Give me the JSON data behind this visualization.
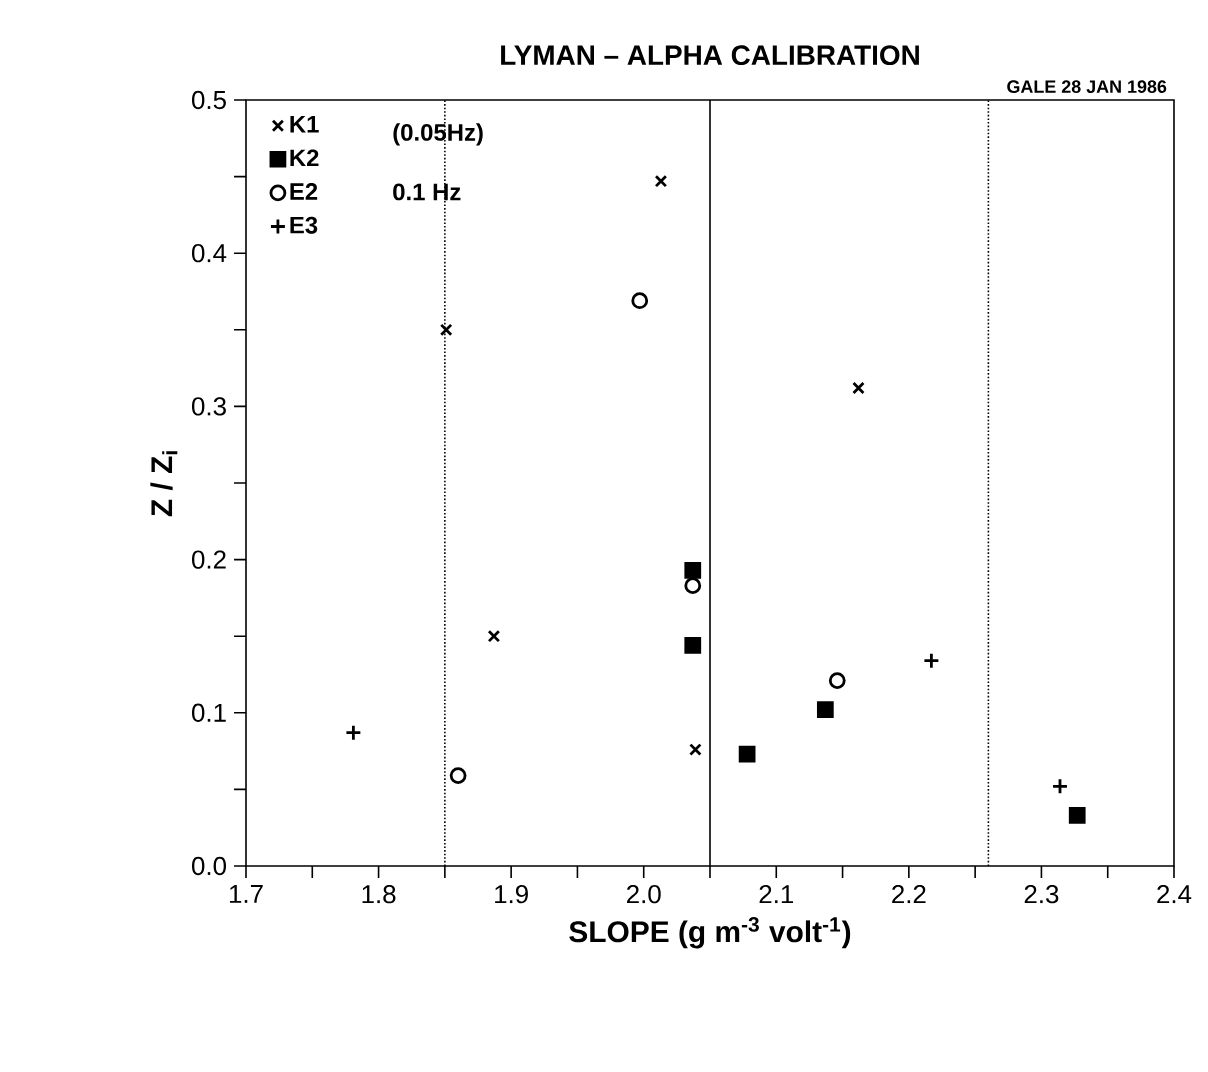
{
  "chart_data": {
    "type": "scatter",
    "title": "LYMAN – ALPHA CALIBRATION",
    "xlabel": "SLOPE (g m$^{-3}$ volt$^{-1}$)",
    "ylabel": "Z / Z$_{i}$",
    "annotations": [
      "GALE 28 JAN 1986",
      "(0.05Hz)",
      "0.1 Hz"
    ],
    "series": [
      {
        "name": "K1",
        "color": "#000000",
        "marker": "cross",
        "x": [
          1.851,
          2.013,
          1.887,
          2.039,
          2.162
        ],
        "values": [
          0.35,
          0.447,
          0.15,
          0.076,
          0.312
        ]
      },
      {
        "name": "K2",
        "color": "#000000",
        "marker": "square",
        "x": [
          2.037,
          2.037,
          2.078,
          2.137,
          2.327
        ],
        "values": [
          0.193,
          0.144,
          0.073,
          0.102,
          0.033
        ]
      },
      {
        "name": "E2",
        "color": "#000000",
        "marker": "circle",
        "x": [
          1.997,
          1.86,
          2.037,
          2.146
        ],
        "values": [
          0.369,
          0.059,
          0.183,
          0.121
        ]
      },
      {
        "name": "E3",
        "color": "#000000",
        "marker": "plus",
        "x": [
          1.781,
          2.217,
          2.314
        ],
        "values": [
          0.087,
          0.134,
          0.052
        ]
      }
    ],
    "xlim": [
      1.7,
      2.4
    ],
    "xticks": [
      {
        "value": 1.7,
        "label": "1.7"
      },
      {
        "value": 1.75,
        "label": null
      },
      {
        "value": 1.8,
        "label": "1.8"
      },
      {
        "value": 1.85,
        "label": null
      },
      {
        "value": 1.9,
        "label": "1.9"
      },
      {
        "value": 1.95,
        "label": null
      },
      {
        "value": 2.0,
        "label": "2.0"
      },
      {
        "value": 2.05,
        "label": null
      },
      {
        "value": 2.1,
        "label": "2.1"
      },
      {
        "value": 2.15,
        "label": null
      },
      {
        "value": 2.2,
        "label": "2.2"
      },
      {
        "value": 2.25,
        "label": null
      },
      {
        "value": 2.3,
        "label": "2.3"
      },
      {
        "value": 2.35,
        "label": null
      },
      {
        "value": 2.4,
        "label": "2.4"
      }
    ],
    "ylim": [
      0,
      0.5
    ],
    "yticks": [
      {
        "value": 0,
        "label": "0.0"
      },
      {
        "value": 0.05,
        "label": null
      },
      {
        "value": 0.1,
        "label": "0.1"
      },
      {
        "value": 0.15,
        "label": null
      },
      {
        "value": 0.2,
        "label": "0.2"
      },
      {
        "value": 0.25,
        "label": null
      },
      {
        "value": 0.3,
        "label": "0.3"
      },
      {
        "value": 0.35,
        "label": null
      },
      {
        "value": 0.4,
        "label": "0.4"
      },
      {
        "value": 0.45,
        "label": null
      },
      {
        "value": 0.5,
        "label": "0.5"
      }
    ],
    "ref_lines": [
      {
        "axis": "x",
        "value": 1.85,
        "line_style": "dotted"
      },
      {
        "axis": "x",
        "value": 2.05,
        "line_style": "solid"
      },
      {
        "axis": "x",
        "value": 2.26,
        "line_style": "dotted"
      }
    ],
    "legend": "top left",
    "grid": false
  }
}
